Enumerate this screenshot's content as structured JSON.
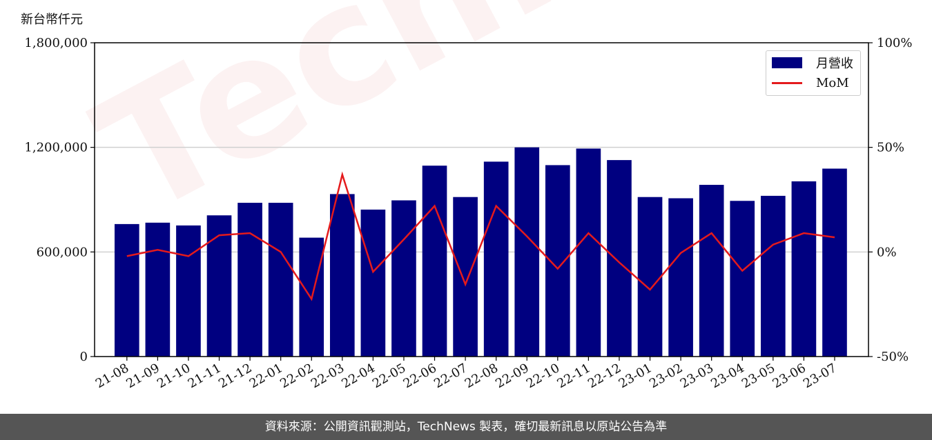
{
  "header": {
    "unit": "新台幣仟元"
  },
  "watermark": "TechNews",
  "footer": {
    "text": "資料來源：公開資訊觀測站，TechNews 製表，確切最新訊息以原站公告為準"
  },
  "legend": {
    "bar_label": "月營收",
    "line_label": "MoM"
  },
  "colors": {
    "bar": "#000080",
    "line": "#e41a1c",
    "grid": "#d0d0d0",
    "footer_bg": "#555555"
  },
  "chart_data": {
    "type": "bar",
    "categories": [
      "21-08",
      "21-09",
      "21-10",
      "21-11",
      "21-12",
      "22-01",
      "22-02",
      "22-03",
      "22-04",
      "22-05",
      "22-06",
      "22-07",
      "22-08",
      "22-09",
      "22-10",
      "22-11",
      "22-12",
      "23-01",
      "23-02",
      "23-03",
      "23-04",
      "23-05",
      "23-06",
      "23-07"
    ],
    "series": [
      {
        "name": "月營收",
        "type": "bar",
        "axis": "left",
        "values": [
          760000,
          768000,
          752000,
          810000,
          882000,
          882000,
          682000,
          932000,
          843000,
          896000,
          1095000,
          915000,
          1118000,
          1200000,
          1098000,
          1193000,
          1127000,
          915000,
          908000,
          985000,
          893000,
          922000,
          1005000,
          1078000
        ]
      },
      {
        "name": "MoM",
        "type": "line",
        "axis": "right",
        "values": [
          -2,
          1,
          -2,
          8,
          9,
          0,
          -22.5,
          37,
          -9.5,
          6,
          22,
          -15.5,
          22,
          7.5,
          -8,
          9,
          -5,
          -18,
          -0.5,
          9,
          -9,
          3.5,
          9,
          7
        ]
      }
    ],
    "left_axis": {
      "ylim": [
        0,
        1800000
      ],
      "ticks": [
        "0",
        "600,000",
        "1,200,000",
        "1,800,000"
      ],
      "tick_values": [
        0,
        600000,
        1200000,
        1800000
      ]
    },
    "right_axis": {
      "ylim": [
        -50,
        100
      ],
      "ticks": [
        "-50%",
        "0%",
        "50%",
        "100%"
      ],
      "tick_values": [
        -50,
        0,
        50,
        100
      ]
    },
    "grid": "horizontal",
    "legend_position": "top-right"
  }
}
